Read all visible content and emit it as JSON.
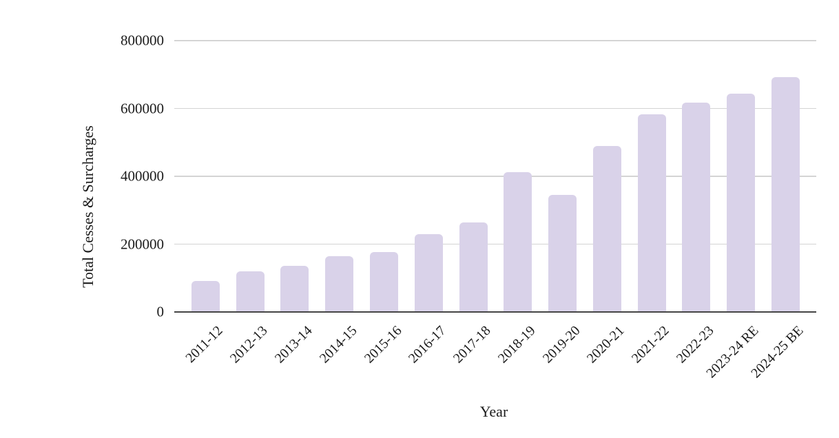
{
  "page": {
    "background": "#ffffff"
  },
  "chart_data": {
    "type": "bar",
    "xlabel": "Year",
    "ylabel": "Total Cesses & Surcharges",
    "categories": [
      "2011-12",
      "2012-13",
      "2013-14",
      "2014-15",
      "2015-16",
      "2016-17",
      "2017-18",
      "2018-19",
      "2019-20",
      "2020-21",
      "2021-22",
      "2022-23",
      "2023-24 RE",
      "2024-25 BE"
    ],
    "values": [
      92000,
      120000,
      136000,
      165000,
      177000,
      230000,
      265000,
      413000,
      346000,
      490000,
      582000,
      618000,
      643000,
      692000
    ],
    "yticks": [
      0,
      200000,
      400000,
      600000,
      800000
    ],
    "ylim": [
      0,
      800000
    ],
    "grid": true,
    "legend": "none",
    "bar_color": "#d9d2e9",
    "gridline_color": "#d4d4d4",
    "axis_line_color": "#454545",
    "text_color": "#1c1c1c"
  }
}
